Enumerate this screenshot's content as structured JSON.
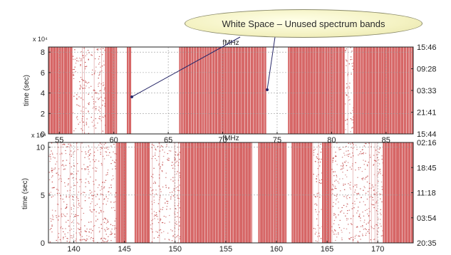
{
  "callout": {
    "text": "White Space – Unused spectrum bands"
  },
  "colors": {
    "occupied": "#d66666",
    "grid": "#9a9a9a",
    "frame": "#222222",
    "speckle": "#c24a4a"
  },
  "chart_data": [
    {
      "type": "heatmap",
      "name": "upper-panel",
      "title": "fMHz",
      "ylabel": "time (sec)",
      "y_exponent": "x 10⁴",
      "xlim": [
        54,
        87.5
      ],
      "ylim": [
        0,
        8.5
      ],
      "xticks": [
        55,
        60,
        65,
        70,
        75,
        80,
        85
      ],
      "yticks": [
        0,
        2,
        4,
        6,
        8
      ],
      "right_time_labels": [
        "15:46",
        "09:28",
        "03:33",
        "21:41",
        "15:44"
      ],
      "occupied_bands": [
        [
          54,
          56.2
        ],
        [
          59.2,
          60.3
        ],
        [
          61.2,
          61.6
        ],
        [
          66,
          74
        ],
        [
          76,
          81.2
        ],
        [
          82,
          87.5
        ]
      ],
      "sparse_bands": [
        [
          56.2,
          59.2
        ],
        [
          68.2,
          71
        ],
        [
          81.2,
          82
        ]
      ],
      "grid": true
    },
    {
      "type": "heatmap",
      "name": "lower-panel",
      "title": "fMHz",
      "ylabel": "time (sec)",
      "y_exponent": "x 10⁴",
      "xlim": [
        137.5,
        173.5
      ],
      "ylim": [
        0,
        10.5
      ],
      "xticks": [
        140,
        145,
        150,
        155,
        160,
        165,
        170
      ],
      "yticks": [
        0,
        5,
        10
      ],
      "right_time_labels": [
        "02:16",
        "18:45",
        "11:18",
        "03:54",
        "20:35"
      ],
      "occupied_bands": [
        [
          144.2,
          145.2
        ],
        [
          146,
          147.5
        ],
        [
          150.5,
          157.6
        ],
        [
          158.2,
          161
        ],
        [
          161.5,
          163.6
        ],
        [
          164.5,
          165.4
        ],
        [
          170.5,
          173.5
        ]
      ],
      "sparse_bands": [
        [
          137.5,
          140
        ],
        [
          140,
          144.2
        ],
        [
          147.5,
          150.5
        ],
        [
          163.6,
          164.5
        ],
        [
          165.4,
          170.5
        ]
      ],
      "grid": true
    }
  ]
}
